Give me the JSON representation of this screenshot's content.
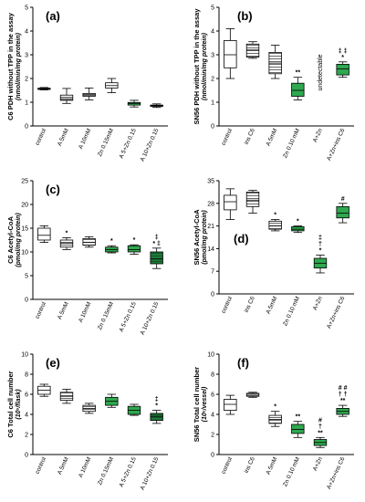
{
  "colors": {
    "white": "#ffffff",
    "green_light": "#2fa84f",
    "green_dark": "#1f7a3a",
    "axis": "#000000"
  },
  "chart_data": [
    {
      "id": "a",
      "type": "box",
      "panel_label": "(a)",
      "ylabel": "C6 PDH without TPP in the assay",
      "yunit": "(nmol/min/mg protein)",
      "ylim": [
        0,
        5
      ],
      "yticks": [
        "0",
        "1",
        "2",
        "3",
        "4",
        "5"
      ],
      "categories": [
        "control",
        "A 5mM",
        "A 10mM",
        "Zn 0.15mM",
        "A 5+Zn 0.15",
        "A 10+Zn 0.15"
      ],
      "fills": [
        "white",
        "white",
        "white",
        "white",
        "green_light",
        "white"
      ],
      "hatched": [
        false,
        true,
        true,
        false,
        false,
        true
      ],
      "boxes": [
        {
          "min": 1.52,
          "q1": 1.54,
          "median": 1.57,
          "q3": 1.59,
          "max": 1.62
        },
        {
          "min": 0.95,
          "q1": 1.08,
          "median": 1.15,
          "q3": 1.3,
          "max": 1.58
        },
        {
          "min": 1.1,
          "q1": 1.25,
          "median": 1.3,
          "q3": 1.37,
          "max": 1.6
        },
        {
          "min": 1.4,
          "q1": 1.6,
          "median": 1.7,
          "q3": 1.82,
          "max": 2.0
        },
        {
          "min": 0.8,
          "q1": 0.88,
          "median": 0.95,
          "q3": 0.99,
          "max": 1.08
        },
        {
          "min": 0.78,
          "q1": 0.82,
          "median": 0.85,
          "q3": 0.88,
          "max": 0.93
        }
      ],
      "marks": [
        "",
        "",
        "",
        "",
        "",
        ""
      ],
      "notes": [
        "",
        "",
        "",
        "",
        "",
        ""
      ]
    },
    {
      "id": "b",
      "type": "box",
      "panel_label": "(b)",
      "ylabel": "SN56 PDH without TPP in the assay",
      "yunit": "(nmol/min/mg protein)",
      "ylim": [
        0,
        5
      ],
      "yticks": [
        "0",
        "1",
        "2",
        "3",
        "4",
        "5"
      ],
      "categories": [
        "control",
        "ins C6",
        "A 5mM",
        "Zn 0.10 mM",
        "A+Zn",
        "A+Zn+ins C6"
      ],
      "fills": [
        "white",
        "white",
        "white",
        "green_light",
        "white",
        "green_light"
      ],
      "hatched": [
        false,
        true,
        true,
        false,
        false,
        false
      ],
      "boxes": [
        {
          "min": 2.0,
          "q1": 2.45,
          "median": 3.0,
          "q3": 3.6,
          "max": 4.1
        },
        {
          "min": 2.85,
          "q1": 2.9,
          "median": 3.2,
          "q3": 3.45,
          "max": 3.55
        },
        {
          "min": 2.0,
          "q1": 2.2,
          "median": 2.65,
          "q3": 3.1,
          "max": 3.4
        },
        {
          "min": 1.1,
          "q1": 1.25,
          "median": 1.5,
          "q3": 1.8,
          "max": 2.05
        },
        null,
        {
          "min": 2.05,
          "q1": 2.15,
          "median": 2.4,
          "q3": 2.6,
          "max": 2.7
        }
      ],
      "marks": [
        "",
        "",
        "",
        "**",
        "",
        "‡ ‡"
      ],
      "marks2": [
        "",
        "",
        "",
        "",
        "",
        "*"
      ],
      "notes": [
        "",
        "",
        "",
        "",
        "undetectable",
        ""
      ]
    },
    {
      "id": "c",
      "type": "box",
      "panel_label": "(c)",
      "ylabel": "C6 Acetyl-CoA",
      "yunit": "(pmol/mg protein)",
      "ylim": [
        0,
        25
      ],
      "yticks": [
        "0",
        "5",
        "10",
        "15",
        "20",
        "25"
      ],
      "categories": [
        "control",
        "A 5mM",
        "A 10mM",
        "Zn 0.15mM",
        "A 5+Zn 0.15",
        "A 10+Zn 0.15"
      ],
      "fills": [
        "white",
        "white",
        "white",
        "green_light",
        "green_light",
        "green_dark"
      ],
      "hatched": [
        false,
        true,
        true,
        false,
        false,
        true
      ],
      "boxes": [
        {
          "min": 12.0,
          "q1": 12.5,
          "median": 13.5,
          "q3": 15.0,
          "max": 15.5
        },
        {
          "min": 10.5,
          "q1": 11.0,
          "median": 11.8,
          "q3": 12.5,
          "max": 13.0
        },
        {
          "min": 11.0,
          "q1": 11.4,
          "median": 12.0,
          "q3": 12.8,
          "max": 13.2
        },
        {
          "min": 9.8,
          "q1": 10.0,
          "median": 10.5,
          "q3": 11.0,
          "max": 11.3
        },
        {
          "min": 9.5,
          "q1": 10.0,
          "median": 10.5,
          "q3": 11.3,
          "max": 11.5
        },
        {
          "min": 6.5,
          "q1": 7.5,
          "median": 8.5,
          "q3": 10.0,
          "max": 10.8
        }
      ],
      "marks": [
        "",
        "*",
        "",
        "*",
        "*",
        "‡"
      ],
      "marks2": [
        "",
        "",
        "",
        "",
        "",
        "* ‡"
      ],
      "notes": [
        "",
        "",
        "",
        "",
        "",
        ""
      ]
    },
    {
      "id": "d",
      "type": "box",
      "panel_label": "(d)",
      "ylabel": "SN56 Acetyl-CoA",
      "yunit": "(pmol/mg protein)",
      "ylim": [
        0,
        35
      ],
      "yticks": [
        "0",
        "7",
        "14",
        "21",
        "28",
        "35"
      ],
      "categories": [
        "control",
        "ins C6",
        "A 5mM",
        "Zn 0.10 mM",
        "A+Zn",
        "A+Zn+ins C6"
      ],
      "fills": [
        "white",
        "white",
        "white",
        "green_light",
        "green_light",
        "green_light"
      ],
      "hatched": [
        false,
        true,
        true,
        false,
        false,
        false
      ],
      "boxes": [
        {
          "min": 23.0,
          "q1": 26.0,
          "median": 28.5,
          "q3": 30.5,
          "max": 32.5
        },
        {
          "min": 25.0,
          "q1": 27.0,
          "median": 29.0,
          "q3": 31.5,
          "max": 32.0
        },
        {
          "min": 19.5,
          "q1": 20.0,
          "median": 21.0,
          "q3": 22.5,
          "max": 23.0
        },
        {
          "min": 19.0,
          "q1": 19.5,
          "median": 20.0,
          "q3": 20.8,
          "max": 21.0
        },
        {
          "min": 6.5,
          "q1": 8.0,
          "median": 9.5,
          "q3": 11.0,
          "max": 12.0
        },
        {
          "min": 22.0,
          "q1": 23.5,
          "median": 25.0,
          "q3": 27.0,
          "max": 28.0
        }
      ],
      "marks": [
        "",
        "",
        "*",
        "*",
        "‡",
        "#"
      ],
      "marks2": [
        "",
        "",
        "",
        "",
        "†",
        ""
      ],
      "marks3": [
        "",
        "",
        "",
        "",
        "*",
        ""
      ],
      "notes": [
        "",
        "",
        "",
        "",
        "",
        ""
      ]
    },
    {
      "id": "e",
      "type": "box",
      "panel_label": "(e)",
      "ylabel": "C6 Total cell number",
      "yunit": "(10⁵/flask)",
      "ylim": [
        0,
        10
      ],
      "yticks": [
        "0",
        "2",
        "4",
        "6",
        "8",
        "10"
      ],
      "categories": [
        "control",
        "A 5mM",
        "A 10mM",
        "Zn 0.15mM",
        "A 5+Zn 0.15",
        "A 10+Zn 0.15"
      ],
      "fills": [
        "white",
        "white",
        "white",
        "green_light",
        "green_light",
        "green_dark"
      ],
      "hatched": [
        false,
        true,
        true,
        false,
        false,
        true
      ],
      "boxes": [
        {
          "min": 5.8,
          "q1": 6.0,
          "median": 6.4,
          "q3": 6.8,
          "max": 7.0
        },
        {
          "min": 5.1,
          "q1": 5.4,
          "median": 5.8,
          "q3": 6.2,
          "max": 6.5
        },
        {
          "min": 4.1,
          "q1": 4.3,
          "median": 4.6,
          "q3": 4.9,
          "max": 5.1
        },
        {
          "min": 4.7,
          "q1": 4.9,
          "median": 5.3,
          "q3": 5.7,
          "max": 6.0
        },
        {
          "min": 3.9,
          "q1": 4.0,
          "median": 4.4,
          "q3": 4.8,
          "max": 5.0
        },
        {
          "min": 3.1,
          "q1": 3.4,
          "median": 3.8,
          "q3": 4.1,
          "max": 4.4
        }
      ],
      "marks": [
        "",
        "",
        "",
        "",
        "",
        "‡"
      ],
      "marks2": [
        "",
        "",
        "",
        "",
        "",
        "*"
      ],
      "notes": [
        "",
        "",
        "",
        "",
        "",
        ""
      ]
    },
    {
      "id": "f",
      "type": "box",
      "panel_label": "(f)",
      "ylabel": "SN56 Total cell number",
      "yunit": "(10⁵/vessel)",
      "ylim": [
        0,
        10
      ],
      "yticks": [
        "0",
        "2",
        "4",
        "6",
        "8",
        "10"
      ],
      "categories": [
        "control",
        "ins C6",
        "A 5mM",
        "Zn 0.10 mM",
        "A+Zn",
        "A+Zn+ins C6"
      ],
      "fills": [
        "white",
        "white",
        "white",
        "green_light",
        "green_light",
        "green_light"
      ],
      "hatched": [
        false,
        true,
        true,
        false,
        false,
        false
      ],
      "boxes": [
        {
          "min": 4.0,
          "q1": 4.4,
          "median": 5.0,
          "q3": 5.5,
          "max": 5.9
        },
        {
          "min": 5.7,
          "q1": 5.8,
          "median": 6.0,
          "q3": 6.1,
          "max": 6.2
        },
        {
          "min": 2.8,
          "q1": 3.1,
          "median": 3.5,
          "q3": 3.9,
          "max": 4.3
        },
        {
          "min": 1.7,
          "q1": 2.1,
          "median": 2.5,
          "q3": 3.0,
          "max": 3.3
        },
        {
          "min": 0.7,
          "q1": 0.9,
          "median": 1.2,
          "q3": 1.5,
          "max": 1.7
        },
        {
          "min": 3.8,
          "q1": 4.0,
          "median": 4.3,
          "q3": 4.6,
          "max": 4.9
        }
      ],
      "marks": [
        "",
        "",
        "*",
        "**",
        "#",
        "# #"
      ],
      "marks2": [
        "",
        "",
        "",
        "",
        "†",
        "† †"
      ],
      "marks3": [
        "",
        "",
        "",
        "",
        "**",
        "**"
      ],
      "notes": [
        "",
        "",
        "",
        "",
        "",
        ""
      ]
    }
  ]
}
